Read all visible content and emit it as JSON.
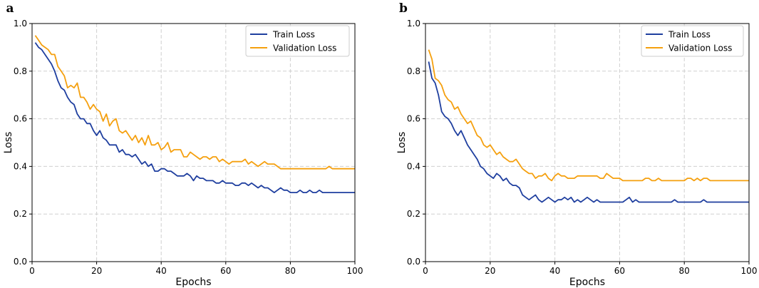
{
  "chart_data": [
    {
      "type": "line",
      "panel_label": "a",
      "xlabel": "Epochs",
      "ylabel": "Loss",
      "xlim": [
        0,
        100
      ],
      "ylim": [
        0,
        1.0
      ],
      "xticks": [
        0,
        20,
        40,
        60,
        80,
        100
      ],
      "xtick_labels": [
        "0",
        "20",
        "40",
        "60",
        "80",
        "100"
      ],
      "yticks": [
        0,
        0.2,
        0.4,
        0.6,
        0.8,
        1.0
      ],
      "ytick_labels": [
        "0.0",
        "0.2",
        "0.4",
        "0.6",
        "0.8",
        "1.0"
      ],
      "grid": true,
      "legend_position": "top-right",
      "series": [
        {
          "name": "Train Loss",
          "color": "#1f3f9f",
          "values": [
            0.92,
            0.9,
            0.89,
            0.87,
            0.85,
            0.83,
            0.8,
            0.76,
            0.73,
            0.72,
            0.69,
            0.67,
            0.66,
            0.62,
            0.6,
            0.6,
            0.58,
            0.58,
            0.55,
            0.53,
            0.55,
            0.52,
            0.51,
            0.49,
            0.49,
            0.49,
            0.46,
            0.47,
            0.45,
            0.45,
            0.44,
            0.45,
            0.43,
            0.41,
            0.42,
            0.4,
            0.41,
            0.38,
            0.38,
            0.39,
            0.39,
            0.38,
            0.38,
            0.37,
            0.36,
            0.36,
            0.36,
            0.37,
            0.36,
            0.34,
            0.36,
            0.35,
            0.35,
            0.34,
            0.34,
            0.34,
            0.33,
            0.33,
            0.34,
            0.33,
            0.33,
            0.33,
            0.32,
            0.32,
            0.33,
            0.33,
            0.32,
            0.33,
            0.32,
            0.31,
            0.32,
            0.31,
            0.31,
            0.3,
            0.29,
            0.3,
            0.31,
            0.3,
            0.3,
            0.29,
            0.29,
            0.29,
            0.3,
            0.29,
            0.29,
            0.3,
            0.29,
            0.29,
            0.3,
            0.29,
            0.29,
            0.29,
            0.29,
            0.29,
            0.29,
            0.29,
            0.29,
            0.29,
            0.29,
            0.29
          ]
        },
        {
          "name": "Validation Loss",
          "color": "#f5a00f",
          "values": [
            0.95,
            0.93,
            0.91,
            0.9,
            0.89,
            0.87,
            0.87,
            0.82,
            0.8,
            0.78,
            0.73,
            0.74,
            0.73,
            0.75,
            0.69,
            0.69,
            0.67,
            0.64,
            0.66,
            0.64,
            0.63,
            0.59,
            0.62,
            0.57,
            0.59,
            0.6,
            0.55,
            0.54,
            0.55,
            0.53,
            0.51,
            0.53,
            0.5,
            0.52,
            0.49,
            0.53,
            0.49,
            0.49,
            0.5,
            0.47,
            0.48,
            0.5,
            0.46,
            0.47,
            0.47,
            0.47,
            0.44,
            0.44,
            0.46,
            0.45,
            0.44,
            0.43,
            0.44,
            0.44,
            0.43,
            0.44,
            0.44,
            0.42,
            0.43,
            0.42,
            0.41,
            0.42,
            0.42,
            0.42,
            0.42,
            0.43,
            0.41,
            0.42,
            0.41,
            0.4,
            0.41,
            0.42,
            0.41,
            0.41,
            0.41,
            0.4,
            0.39,
            0.39,
            0.39,
            0.39,
            0.39,
            0.39,
            0.39,
            0.39,
            0.39,
            0.39,
            0.39,
            0.39,
            0.39,
            0.39,
            0.39,
            0.4,
            0.39,
            0.39,
            0.39,
            0.39,
            0.39,
            0.39,
            0.39,
            0.39
          ]
        }
      ]
    },
    {
      "type": "line",
      "panel_label": "b",
      "xlabel": "Epochs",
      "ylabel": "Loss",
      "xlim": [
        0,
        100
      ],
      "ylim": [
        0,
        1.0
      ],
      "xticks": [
        0,
        20,
        40,
        60,
        80,
        100
      ],
      "xtick_labels": [
        "0",
        "20",
        "40",
        "60",
        "80",
        "100"
      ],
      "yticks": [
        0,
        0.2,
        0.4,
        0.6,
        0.8,
        1.0
      ],
      "ytick_labels": [
        "0.0",
        "0.2",
        "0.4",
        "0.6",
        "0.8",
        "1.0"
      ],
      "grid": true,
      "legend_position": "top-right",
      "series": [
        {
          "name": "Train Loss",
          "color": "#1f3f9f",
          "values": [
            0.84,
            0.77,
            0.75,
            0.7,
            0.63,
            0.61,
            0.6,
            0.58,
            0.55,
            0.53,
            0.55,
            0.52,
            0.49,
            0.47,
            0.45,
            0.43,
            0.4,
            0.39,
            0.37,
            0.36,
            0.35,
            0.37,
            0.36,
            0.34,
            0.35,
            0.33,
            0.32,
            0.32,
            0.31,
            0.28,
            0.27,
            0.26,
            0.27,
            0.28,
            0.26,
            0.25,
            0.26,
            0.27,
            0.26,
            0.25,
            0.26,
            0.26,
            0.27,
            0.26,
            0.27,
            0.25,
            0.26,
            0.25,
            0.26,
            0.27,
            0.26,
            0.25,
            0.26,
            0.25,
            0.25,
            0.25,
            0.25,
            0.25,
            0.25,
            0.25,
            0.25,
            0.26,
            0.27,
            0.25,
            0.26,
            0.25,
            0.25,
            0.25,
            0.25,
            0.25,
            0.25,
            0.25,
            0.25,
            0.25,
            0.25,
            0.25,
            0.26,
            0.25,
            0.25,
            0.25,
            0.25,
            0.25,
            0.25,
            0.25,
            0.25,
            0.26,
            0.25,
            0.25,
            0.25,
            0.25,
            0.25,
            0.25,
            0.25,
            0.25,
            0.25,
            0.25,
            0.25,
            0.25,
            0.25,
            0.25
          ]
        },
        {
          "name": "Validation Loss",
          "color": "#f5a00f",
          "values": [
            0.89,
            0.85,
            0.77,
            0.76,
            0.74,
            0.7,
            0.68,
            0.67,
            0.64,
            0.65,
            0.62,
            0.6,
            0.58,
            0.59,
            0.56,
            0.53,
            0.52,
            0.49,
            0.48,
            0.49,
            0.47,
            0.45,
            0.46,
            0.44,
            0.43,
            0.42,
            0.42,
            0.43,
            0.41,
            0.39,
            0.38,
            0.37,
            0.37,
            0.35,
            0.36,
            0.36,
            0.37,
            0.35,
            0.34,
            0.36,
            0.37,
            0.36,
            0.36,
            0.35,
            0.35,
            0.35,
            0.36,
            0.36,
            0.36,
            0.36,
            0.36,
            0.36,
            0.36,
            0.35,
            0.35,
            0.37,
            0.36,
            0.35,
            0.35,
            0.35,
            0.34,
            0.34,
            0.34,
            0.34,
            0.34,
            0.34,
            0.34,
            0.35,
            0.35,
            0.34,
            0.34,
            0.35,
            0.34,
            0.34,
            0.34,
            0.34,
            0.34,
            0.34,
            0.34,
            0.34,
            0.35,
            0.35,
            0.34,
            0.35,
            0.34,
            0.35,
            0.35,
            0.34,
            0.34,
            0.34,
            0.34,
            0.34,
            0.34,
            0.34,
            0.34,
            0.34,
            0.34,
            0.34,
            0.34,
            0.34
          ]
        }
      ]
    }
  ]
}
